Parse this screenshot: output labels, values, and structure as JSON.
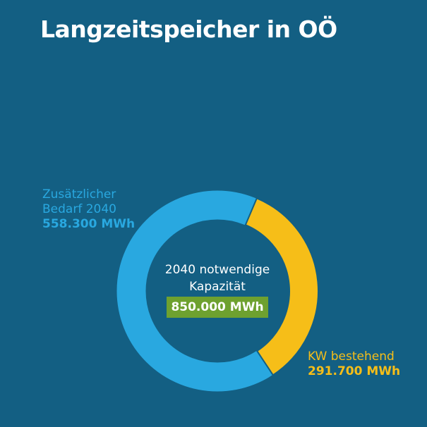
{
  "title": "Langzeitspeicher in OÖ",
  "colors": {
    "background": "#135f83",
    "zusaetzlich": "#29a8e0",
    "bestehend": "#f6be18",
    "total_box": "#6ea12f",
    "text": "#ffffff"
  },
  "center": {
    "line1": "2040 notwendige",
    "line2": "Kapazität",
    "value": "850.000 MWh"
  },
  "segments": [
    {
      "label_line1": "Zusätzlicher",
      "label_line2": "Bedarf 2040",
      "value": "558.300 MWh"
    },
    {
      "label_line1": "KW bestehend",
      "value": "291.700 MWh"
    }
  ],
  "chart_data": {
    "type": "pie",
    "subtype": "donut",
    "title": "Langzeitspeicher in OÖ",
    "center_label": "2040 notwendige Kapazität 850.000 MWh",
    "total": 850000,
    "unit": "MWh",
    "categories": [
      "Zusätzlicher Bedarf 2040",
      "KW bestehend"
    ],
    "values": [
      558300,
      291700
    ],
    "colors": [
      "#29a8e0",
      "#f6be18"
    ],
    "legend": "direct labels"
  }
}
